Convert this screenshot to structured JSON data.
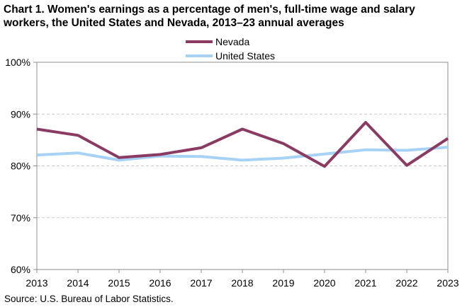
{
  "chart_data": {
    "type": "line",
    "title": "Chart 1. Women's earnings as a percentage of men's, full-time wage and salary workers, the United States and Nevada, 2013–23 annual averages",
    "title_lines": [
      "Chart 1. Women's earnings as a percentage of men's, full-time wage and salary",
      "workers, the United States and Nevada, 2013–23 annual averages"
    ],
    "xlabel": "",
    "ylabel": "",
    "x": [
      "2013",
      "2014",
      "2015",
      "2016",
      "2017",
      "2018",
      "2019",
      "2020",
      "2021",
      "2022",
      "2023"
    ],
    "series": [
      {
        "name": "Nevada",
        "color": "#8b3a62",
        "values": [
          87.1,
          85.9,
          81.6,
          82.2,
          83.5,
          87.1,
          84.3,
          79.9,
          88.4,
          80.1,
          85.3
        ]
      },
      {
        "name": "United States",
        "color": "#a6d3f5",
        "values": [
          82.1,
          82.5,
          81.1,
          81.9,
          81.8,
          81.1,
          81.5,
          82.3,
          83.1,
          83.0,
          83.6
        ]
      }
    ],
    "ylim": [
      60,
      100
    ],
    "yticks": [
      60,
      70,
      80,
      90,
      100
    ],
    "ytick_labels": [
      "60%",
      "70%",
      "80%",
      "90%",
      "100%"
    ],
    "grid": "horizontal dashed",
    "legend_position": "top-center",
    "source": "Source:  U.S. Bureau of Labor Statistics."
  }
}
